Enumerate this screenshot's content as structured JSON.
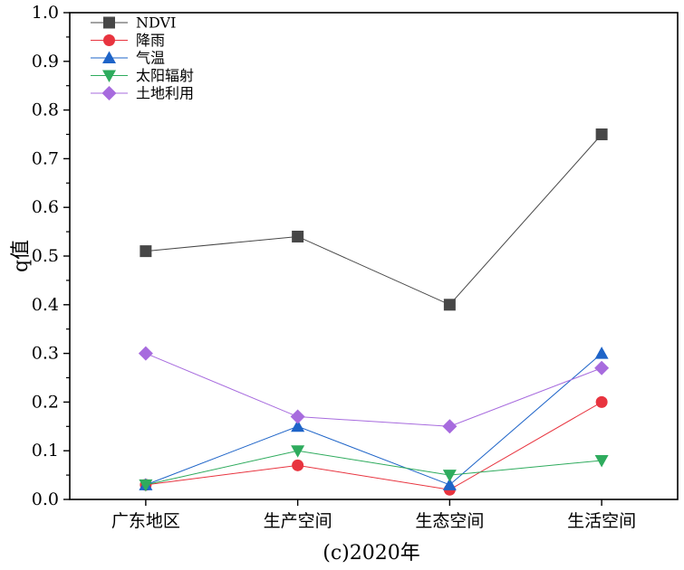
{
  "chart_data": {
    "type": "line",
    "title": "",
    "xlabel": "(c)2020年",
    "ylabel": "q值",
    "categories": [
      "广东地区",
      "生产空间",
      "生态空间",
      "生活空间"
    ],
    "ylim": [
      0.0,
      1.0
    ],
    "yticks": [
      "0.0",
      "0.1",
      "0.2",
      "0.3",
      "0.4",
      "0.5",
      "0.6",
      "0.7",
      "0.8",
      "0.9",
      "1.0"
    ],
    "grid": false,
    "legend_position": "top-left",
    "series": [
      {
        "name": "NDVI",
        "marker": "square",
        "color": "#474747",
        "values": [
          0.51,
          0.54,
          0.4,
          0.75
        ]
      },
      {
        "name": "降雨",
        "marker": "circle",
        "color": "#e8343f",
        "values": [
          0.03,
          0.07,
          0.02,
          0.2
        ]
      },
      {
        "name": "气温",
        "marker": "triangle-up",
        "color": "#1e64c8",
        "values": [
          0.03,
          0.15,
          0.03,
          0.3
        ]
      },
      {
        "name": "太阳辐射",
        "marker": "triangle-down",
        "color": "#2eab5d",
        "values": [
          0.03,
          0.1,
          0.05,
          0.08
        ]
      },
      {
        "name": "土地利用",
        "marker": "diamond",
        "color": "#a76bde",
        "values": [
          0.3,
          0.17,
          0.15,
          0.27
        ]
      }
    ]
  }
}
